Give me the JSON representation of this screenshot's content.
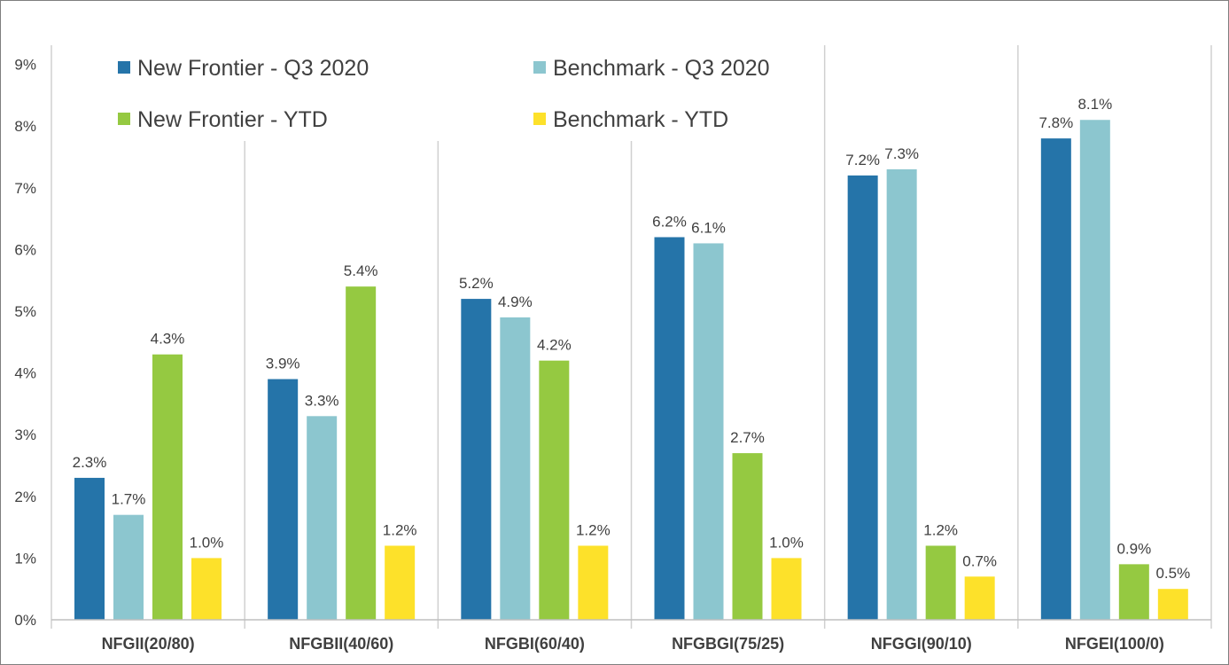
{
  "chart_data": {
    "type": "bar",
    "categories": [
      "NFGII(20/80)",
      "NFGBII(40/60)",
      "NFGBI(60/40)",
      "NFGBGI(75/25)",
      "NFGGI(90/10)",
      "NFGEI(100/0)"
    ],
    "series": [
      {
        "name": "New Frontier - Q3 2020",
        "color": "#2574a9",
        "values": [
          2.3,
          3.9,
          5.2,
          6.2,
          7.2,
          7.8
        ],
        "labels": [
          "2.3%",
          "3.9%",
          "5.2%",
          "6.2%",
          "7.2%",
          "7.8%"
        ]
      },
      {
        "name": "Benchmark - Q3 2020",
        "color": "#8cc6cf",
        "values": [
          1.7,
          3.3,
          4.9,
          6.1,
          7.3,
          8.1
        ],
        "labels": [
          "1.7%",
          "3.3%",
          "4.9%",
          "6.1%",
          "7.3%",
          "8.1%"
        ]
      },
      {
        "name": "New Frontier - YTD",
        "color": "#95c941",
        "values": [
          4.3,
          5.4,
          4.2,
          2.7,
          1.2,
          0.9
        ],
        "labels": [
          "4.3%",
          "5.4%",
          "4.2%",
          "2.7%",
          "1.2%",
          "0.9%"
        ]
      },
      {
        "name": "Benchmark - YTD",
        "color": "#fde12a",
        "values": [
          1.0,
          1.2,
          1.2,
          1.0,
          0.7,
          0.5
        ],
        "labels": [
          "1.0%",
          "1.2%",
          "1.2%",
          "1.0%",
          "0.7%",
          "0.5%"
        ]
      }
    ],
    "ylim": [
      0,
      9
    ],
    "yticks": [
      "0%",
      "1%",
      "2%",
      "3%",
      "4%",
      "5%",
      "6%",
      "7%",
      "8%",
      "9%"
    ],
    "legend_position": "top-left",
    "grid": false,
    "category_separators": true,
    "title": "",
    "xlabel": "",
    "ylabel": ""
  }
}
